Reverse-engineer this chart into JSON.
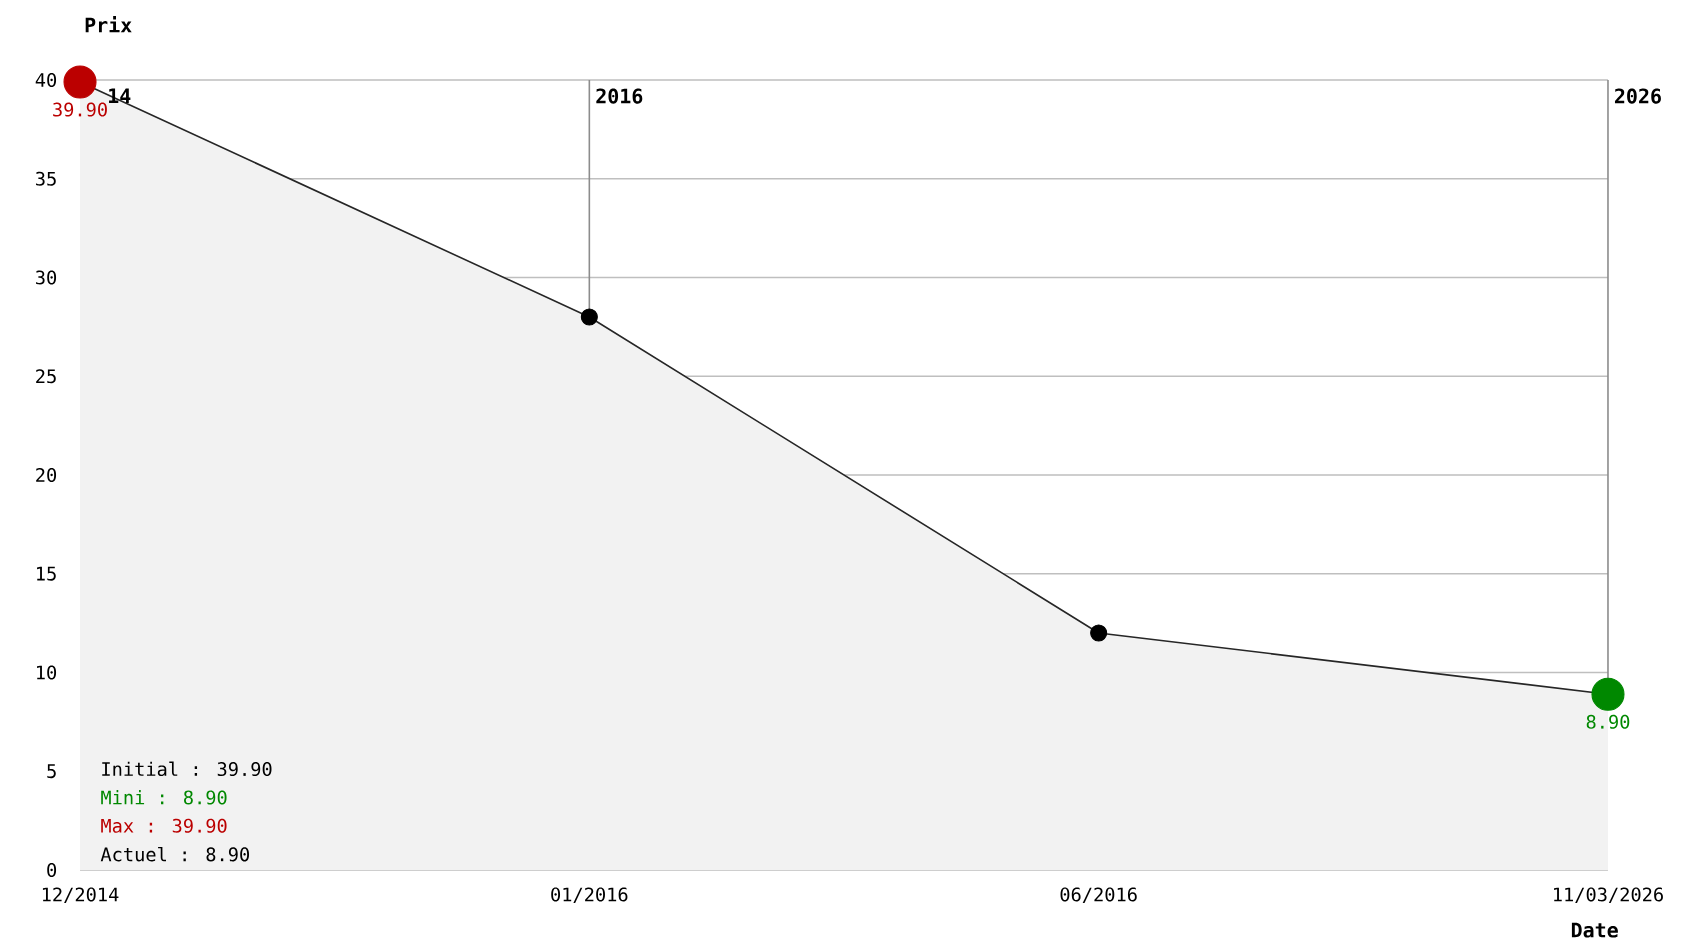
{
  "chart_data": {
    "type": "area",
    "xlabel": "Date",
    "ylabel": "Prix",
    "categories": [
      "12/2014",
      "01/2016",
      "06/2016",
      "11/03/2026"
    ],
    "values": [
      39.9,
      28,
      12,
      8.9
    ],
    "value_labels": [
      "39.90",
      null,
      null,
      "8.90"
    ],
    "color": "#f2f2f2",
    "colors": [
      "#bb0000",
      "#000000",
      "#000000",
      "#008800"
    ],
    "marker": "circle",
    "ylim": [
      0,
      40
    ],
    "yticks": [
      0,
      5,
      10,
      15,
      20,
      25,
      30,
      35,
      40
    ],
    "grid": "y",
    "ref_lines": [
      {
        "axis": "x",
        "value": "01/2016",
        "label": "2016",
        "color": "#8c8c8c"
      },
      {
        "axis": "x",
        "value": "11/03/2026",
        "label": "2026",
        "color": "#8c8c8c"
      }
    ],
    "annotations": [
      "14",
      "Initial : 39.90",
      "Mini : 8.90",
      "Max : 39.90",
      "Actuel : 8.90"
    ]
  }
}
